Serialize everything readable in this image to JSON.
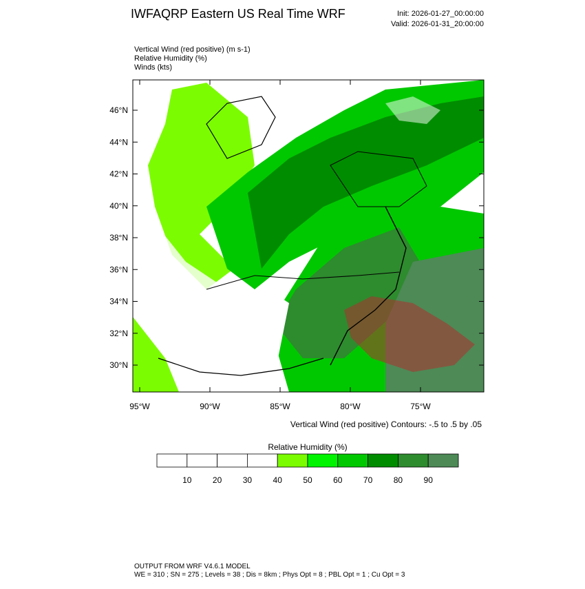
{
  "header": {
    "title": "IWFAQRP Eastern US Real Time WRF",
    "init": "Init: 2026-01-27_00:00:00",
    "valid": "Valid: 2026-01-31_20:00:00"
  },
  "fields": [
    "Vertical Wind (red positive)   (m s-1)",
    "Relative Humidity   (%)",
    "Winds   (kts)"
  ],
  "map": {
    "lat_labels": [
      "46°N",
      "44°N",
      "42°N",
      "40°N",
      "38°N",
      "36°N",
      "34°N",
      "32°N",
      "30°N"
    ],
    "lon_labels": [
      "95°W",
      "90°W",
      "85°W",
      "80°W",
      "75°W"
    ],
    "contour_note": "Vertical Wind (red positive) Contours: -.5 to .5 by .05"
  },
  "colorbar": {
    "title": "Relative Humidity  (%)",
    "labels": [
      10,
      20,
      30,
      40,
      50,
      60,
      70,
      80,
      90
    ],
    "colors": [
      "#ffffff",
      "#ffffff",
      "#ffffff",
      "#ffffff",
      "#7cfc00",
      "#00f400",
      "#00c800",
      "#008c00",
      "#2e8b2e",
      "#4d8a56"
    ]
  },
  "footer": {
    "line1": "OUTPUT FROM WRF V4.6.1 MODEL",
    "line2": "WE = 310 ; SN = 275 ; Levels = 38 ; Dis = 8km ; Phys Opt = 8 ; PBL Opt = 1 ; Cu Opt = 3"
  }
}
